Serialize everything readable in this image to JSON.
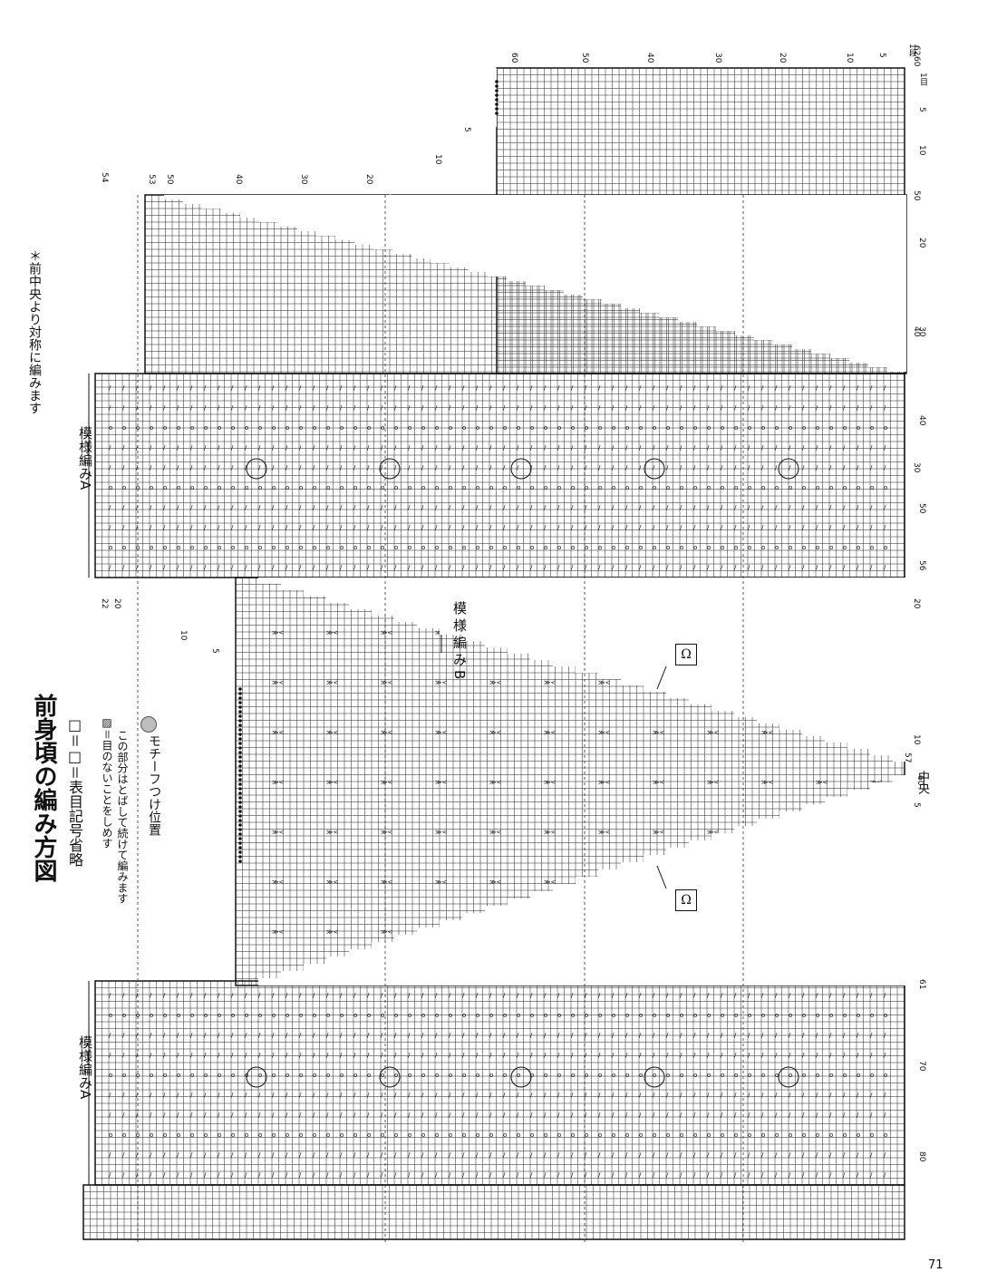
{
  "title": "前身頃の編み方図",
  "note_symmetry": "＊前中央より対称に編みます",
  "legend": {
    "plain": "□＝□＝表目記号省略",
    "hatched_1": "▨＝目のないことをしめす",
    "hatched_2": "この部分はとばして続けて編みます",
    "circle": "モチーフつけ位置"
  },
  "labels": {
    "pattern_a_top": "模様編みA",
    "pattern_a_bottom": "模様編みA",
    "pattern_b": "模様編みB",
    "center": "中央",
    "omega_top": "Ω",
    "omega_bottom": "Ω",
    "page_number": "71",
    "row_unit": "1段",
    "stitch_unit": "1目"
  },
  "rows_right": [
    "62",
    "60",
    "50",
    "40",
    "30",
    "20",
    "10",
    "5",
    "1"
  ],
  "stitches_right": [
    "1",
    "5",
    "10",
    "20",
    "30",
    "40",
    "50",
    "56"
  ],
  "row_marks_upper": [
    "54",
    "53",
    "50",
    "40",
    "30",
    "20"
  ],
  "neck_marks": [
    "22",
    "20",
    "10",
    "5"
  ],
  "center_marks": [
    "60",
    "57"
  ],
  "stitches_left": [
    "61",
    "70",
    "80"
  ],
  "shoulder_marks": [
    "10",
    "5"
  ]
}
